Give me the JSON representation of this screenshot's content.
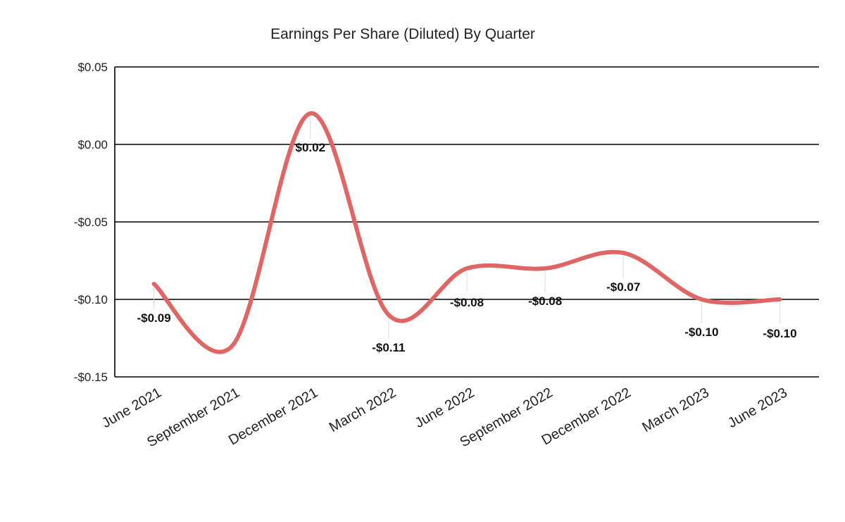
{
  "chart_data": {
    "type": "line",
    "title": "Earnings Per Share (Diluted) By Quarter",
    "xlabel": "",
    "ylabel": "",
    "categories": [
      "June 2021",
      "September 2021",
      "December 2021",
      "March 2022",
      "June 2022",
      "September 2022",
      "December 2022",
      "March 2023",
      "June 2023"
    ],
    "series": [
      {
        "values": [
          -0.09,
          -0.13,
          0.02,
          -0.11,
          -0.08,
          -0.08,
          -0.07,
          -0.1,
          -0.1
        ],
        "color": "#e06666",
        "smooth": true
      }
    ],
    "data_labels": [
      "-$0.09",
      "",
      "$0.02",
      "-$0.11",
      "-$0.08",
      "-$0.08",
      "-$0.07",
      "-$0.10",
      "-$0.10"
    ],
    "ylim": [
      -0.15,
      0.05
    ],
    "yticks": [
      0.05,
      0.0,
      -0.05,
      -0.1,
      -0.15
    ],
    "ytick_labels": [
      "$0.05",
      "$0.00",
      "-$0.05",
      "-$0.10",
      "-$0.15"
    ],
    "grid": true,
    "legend": "none"
  }
}
